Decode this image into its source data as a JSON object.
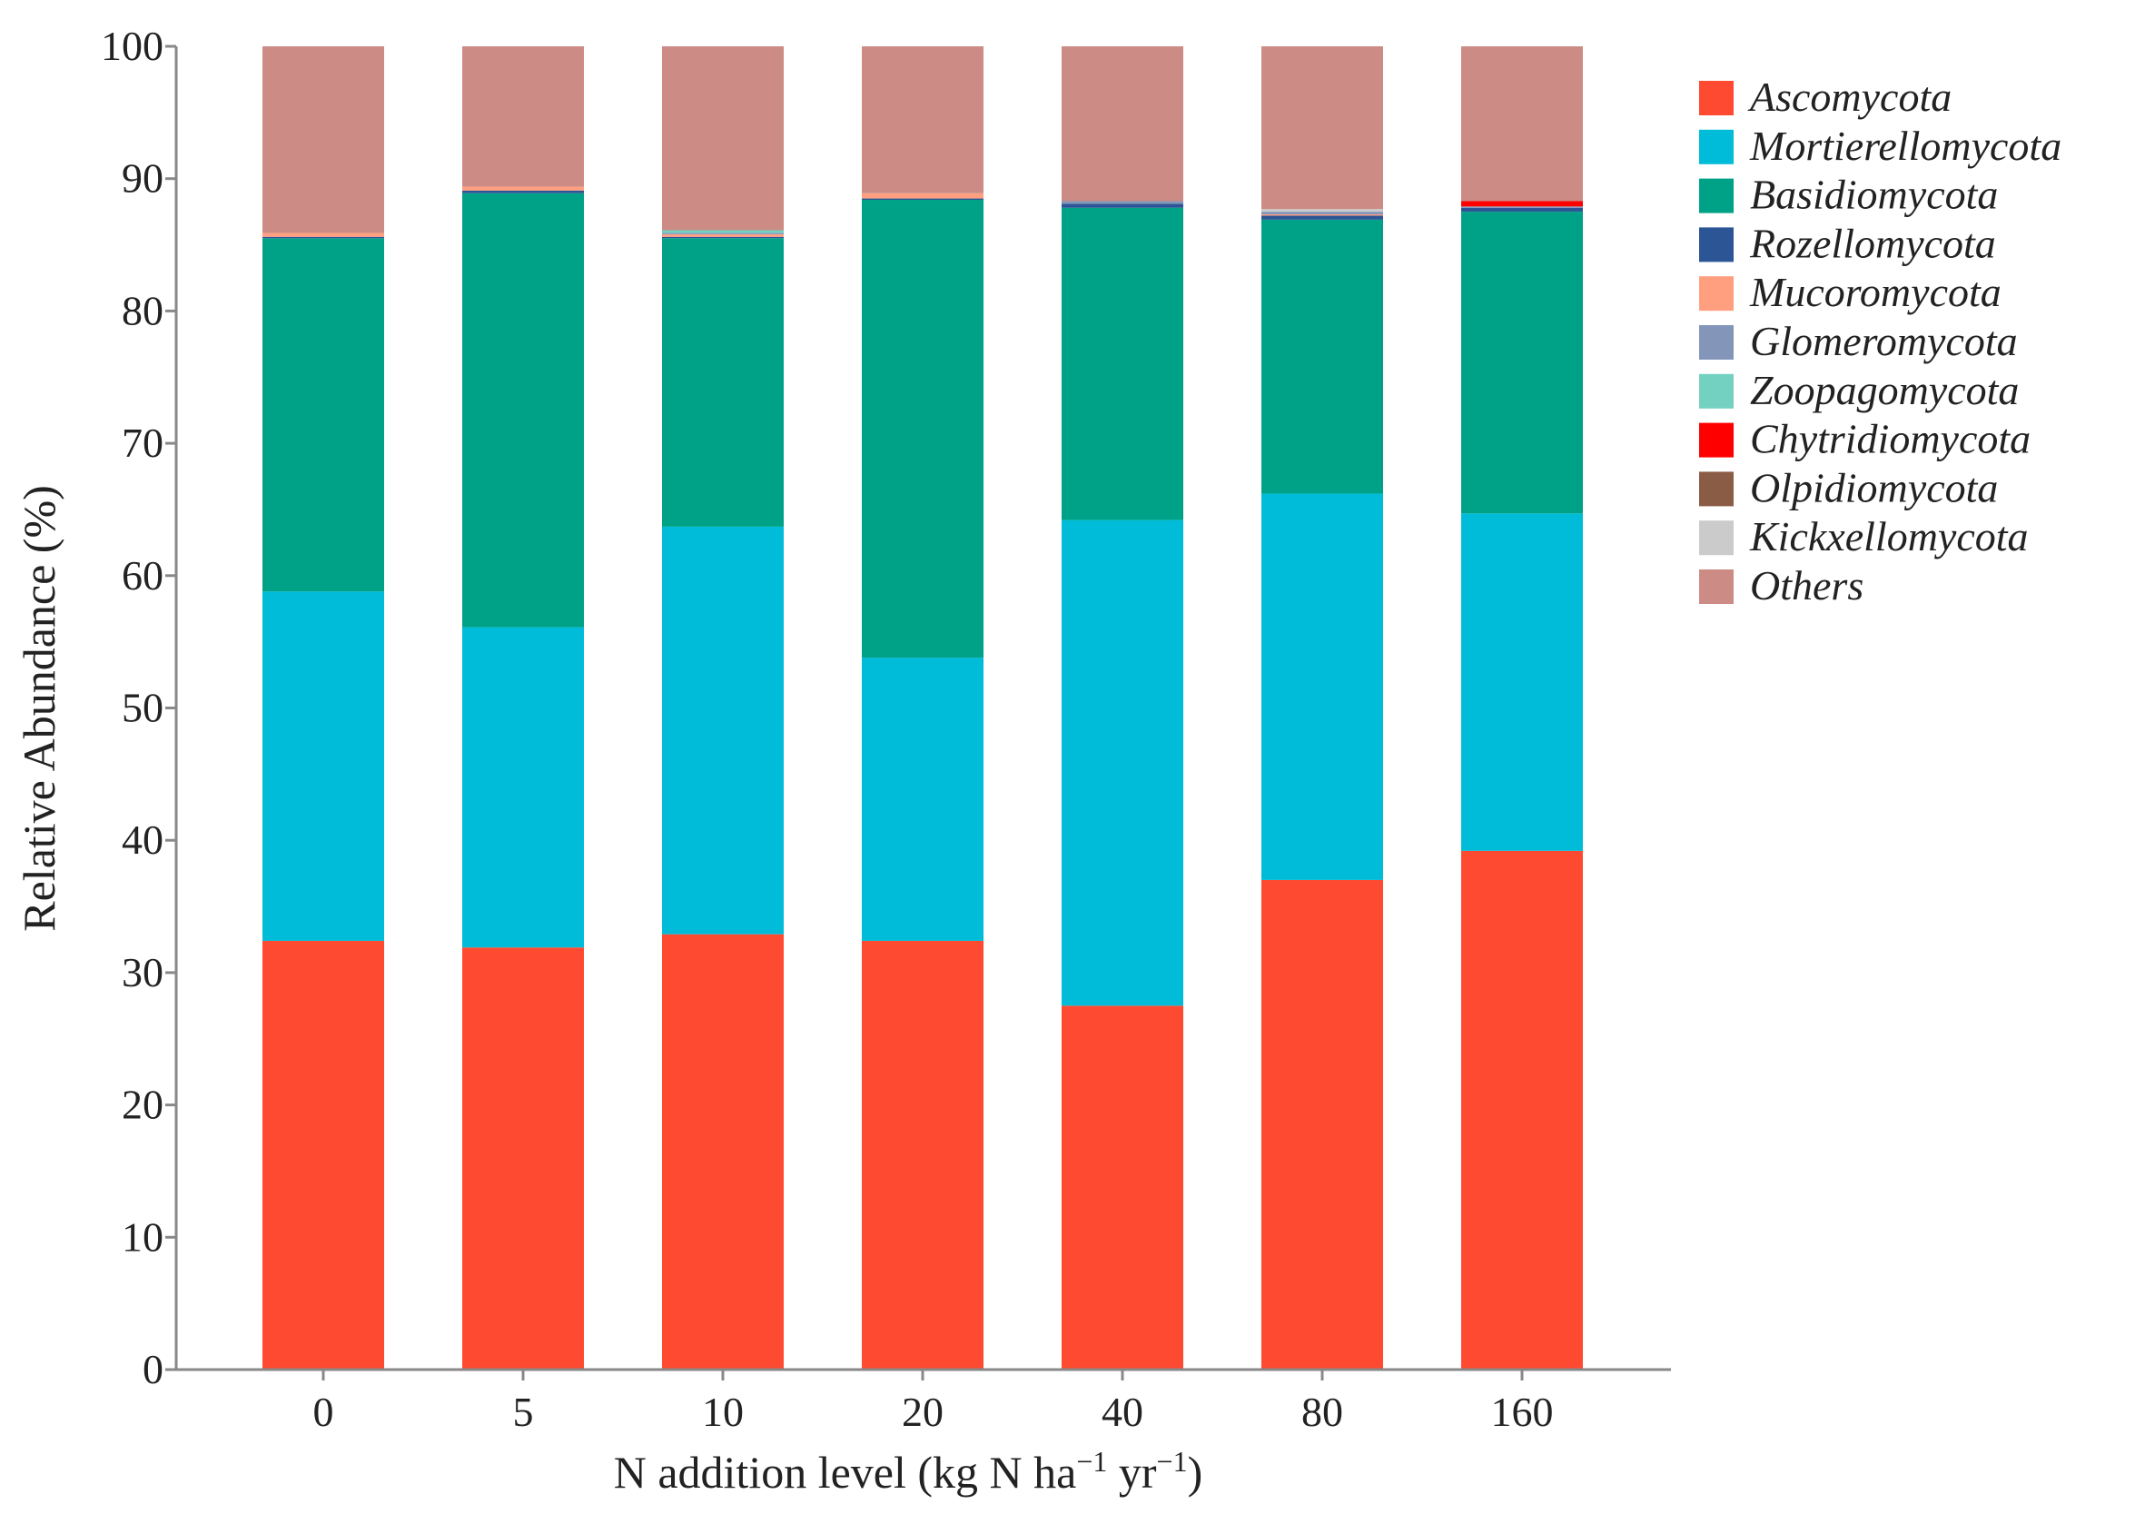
{
  "chart_data": {
    "type": "bar",
    "stacked": true,
    "title": "",
    "xlabel": "N addition level (kg N ha",
    "xlabel_sup1": "−1",
    "xlabel_mid": " yr",
    "xlabel_sup2": "−1",
    "xlabel_end": ")",
    "ylabel": "Relative Abundance (%)",
    "ylim": [
      0,
      100
    ],
    "yticks": [
      "0",
      "10",
      "20",
      "30",
      "40",
      "50",
      "60",
      "70",
      "80",
      "90",
      "100"
    ],
    "categories": [
      "0",
      "5",
      "10",
      "20",
      "40",
      "80",
      "160"
    ],
    "legend_position": "right",
    "series": [
      {
        "name": "Ascomycota",
        "color": "#ff4a32",
        "values": [
          32.4,
          31.9,
          32.9,
          32.4,
          27.5,
          37.0,
          39.2
        ]
      },
      {
        "name": "Mortierellomycota",
        "color": "#00bcd8",
        "values": [
          26.4,
          24.2,
          30.8,
          21.4,
          36.7,
          29.2,
          25.5
        ]
      },
      {
        "name": "Basidiomycota",
        "color": "#00a287",
        "values": [
          26.7,
          32.8,
          21.8,
          34.6,
          23.6,
          20.7,
          22.8
        ]
      },
      {
        "name": "Rozellomycota",
        "color": "#2c5595",
        "values": [
          0.1,
          0.2,
          0.1,
          0.1,
          0.3,
          0.3,
          0.3
        ]
      },
      {
        "name": "Mucoromycota",
        "color": "#ff9f80",
        "values": [
          0.3,
          0.3,
          0.2,
          0.4,
          0.0,
          0.1,
          0.0
        ]
      },
      {
        "name": "Glomeromycota",
        "color": "#8396b9",
        "values": [
          0.0,
          0.0,
          0.1,
          0.0,
          0.2,
          0.2,
          0.1
        ]
      },
      {
        "name": "Zoopagomycota",
        "color": "#73d1c1",
        "values": [
          0.0,
          0.0,
          0.2,
          0.0,
          0.0,
          0.0,
          0.0
        ]
      },
      {
        "name": "Chytridiomycota",
        "color": "#ff0000",
        "values": [
          0.0,
          0.0,
          0.0,
          0.0,
          0.0,
          0.0,
          0.4
        ]
      },
      {
        "name": "Olpidiomycota",
        "color": "#8a5c45",
        "values": [
          0.0,
          0.0,
          0.0,
          0.0,
          0.0,
          0.0,
          0.0
        ]
      },
      {
        "name": "Kickxellomycota",
        "color": "#cbcbcb",
        "values": [
          0.0,
          0.0,
          0.0,
          0.0,
          0.0,
          0.2,
          0.0
        ]
      },
      {
        "name": "Others",
        "color": "#cc8b85",
        "values": [
          14.1,
          10.6,
          13.9,
          11.1,
          11.7,
          12.3,
          11.7
        ]
      }
    ]
  }
}
